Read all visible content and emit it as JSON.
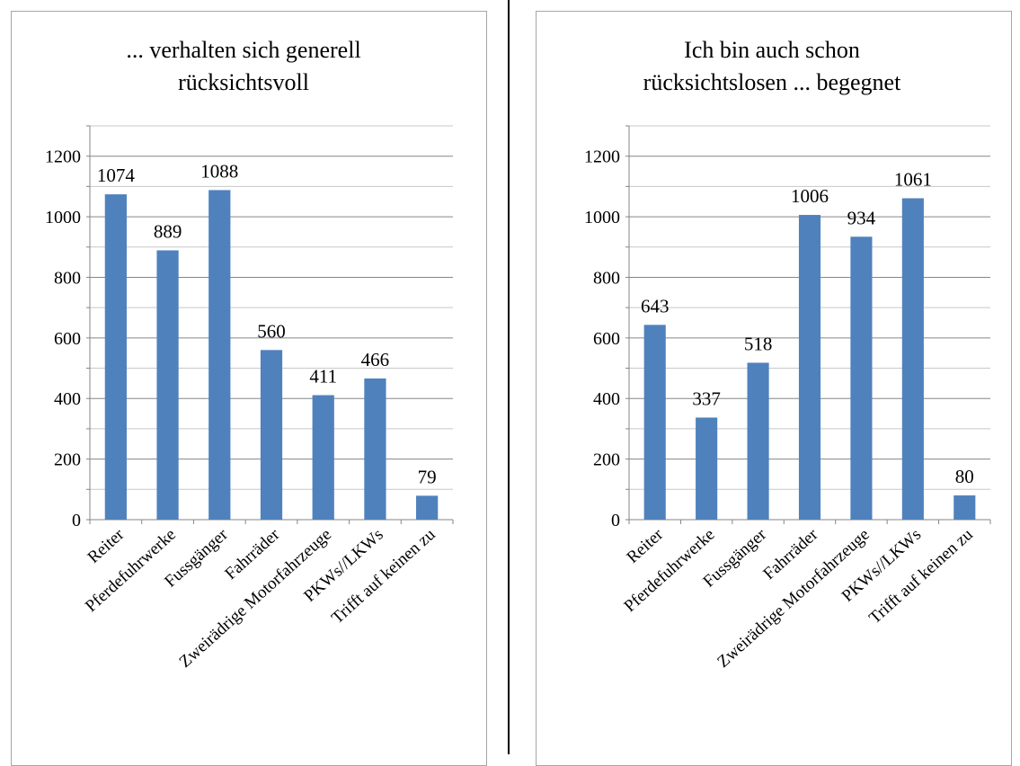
{
  "chart_data": [
    {
      "type": "bar",
      "title_lines": [
        "... verhalten sich generell",
        "rücksichtsvoll"
      ],
      "categories": [
        "Reiter",
        "Pferdefuhrwerke",
        "Fussgänger",
        "Fahrräder",
        "Zweirädrige Motorfahrzeuge",
        "PKWs//LKWs",
        "Trifft auf keinen zu"
      ],
      "values": [
        1074,
        889,
        1088,
        560,
        411,
        466,
        79
      ],
      "yticks": [
        "0",
        "200",
        "400",
        "600",
        "800",
        "1000",
        "1200"
      ],
      "ylim": [
        0,
        1300
      ],
      "grid": true,
      "bar_color": "#4f81bd"
    },
    {
      "type": "bar",
      "title_lines": [
        "Ich bin auch schon",
        "rücksichtslosen ... begegnet"
      ],
      "categories": [
        "Reiter",
        "Pferdefuhrwerke",
        "Fussgänger",
        "Fahrräder",
        "Zweirädrige Motorfahrzeuge",
        "PKWs//LKWs",
        "Trifft auf keinen zu"
      ],
      "values": [
        643,
        337,
        518,
        1006,
        934,
        1061,
        80
      ],
      "yticks": [
        "0",
        "200",
        "400",
        "600",
        "800",
        "1000",
        "1200"
      ],
      "ylim": [
        0,
        1300
      ],
      "grid": true,
      "bar_color": "#4f81bd"
    }
  ]
}
